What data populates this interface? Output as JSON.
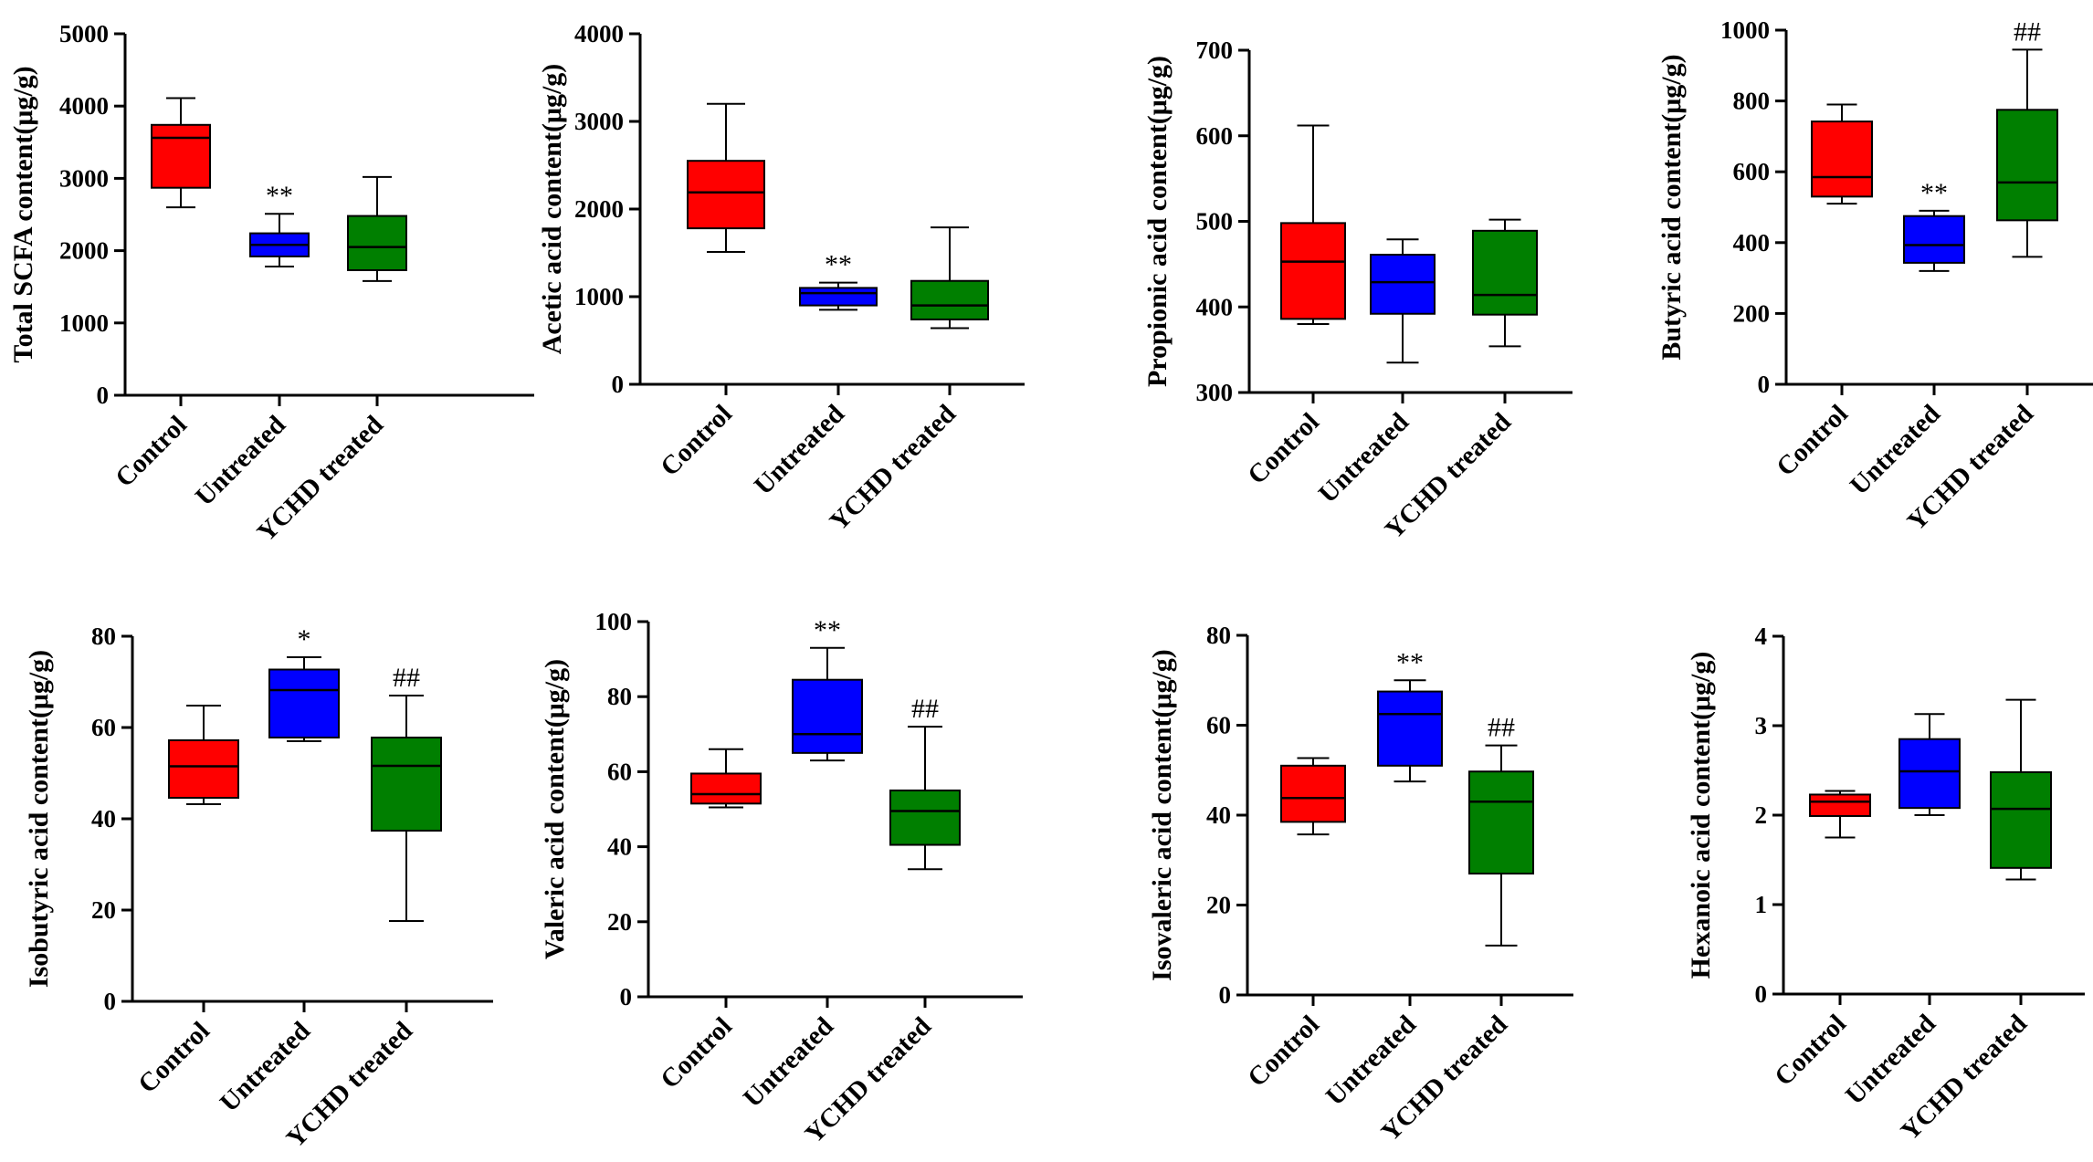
{
  "colors": {
    "Control": "#ff0000",
    "Untreated": "#0000ff",
    "YCHD treated": "#007f00"
  },
  "chart_data": [
    {
      "type": "box",
      "ylabel": "Total SCFA content(μg/g)",
      "ylim": [
        0,
        5000
      ],
      "yticks": [
        0,
        1000,
        2000,
        3000,
        4000,
        5000
      ],
      "categories": [
        "Control",
        "Untreated",
        "YCHD treated"
      ],
      "boxes": [
        {
          "group": "Control",
          "min": 2600,
          "q1": 2870,
          "median": 3560,
          "q3": 3740,
          "max": 4110,
          "sig": ""
        },
        {
          "group": "Untreated",
          "min": 1780,
          "q1": 1920,
          "median": 2080,
          "q3": 2240,
          "max": 2510,
          "sig": "**"
        },
        {
          "group": "YCHD treated",
          "min": 1580,
          "q1": 1730,
          "median": 2050,
          "q3": 2480,
          "max": 3020,
          "sig": ""
        }
      ]
    },
    {
      "type": "box",
      "ylabel": "Acetic acid content(μg/g)",
      "ylim": [
        0,
        4000
      ],
      "yticks": [
        0,
        1000,
        2000,
        3000,
        4000
      ],
      "categories": [
        "Control",
        "Untreated",
        "YCHD treated"
      ],
      "boxes": [
        {
          "group": "Control",
          "min": 1510,
          "q1": 1780,
          "median": 2190,
          "q3": 2550,
          "max": 3200,
          "sig": ""
        },
        {
          "group": "Untreated",
          "min": 850,
          "q1": 900,
          "median": 1040,
          "q3": 1100,
          "max": 1160,
          "sig": "**"
        },
        {
          "group": "YCHD treated",
          "min": 640,
          "q1": 740,
          "median": 900,
          "q3": 1180,
          "max": 1790,
          "sig": ""
        }
      ]
    },
    {
      "type": "box",
      "ylabel": "Propionic acid content(μg/g)",
      "ylim": [
        300,
        700
      ],
      "yticks": [
        300,
        400,
        500,
        600,
        700
      ],
      "categories": [
        "Control",
        "Untreated",
        "YCHD treated"
      ],
      "boxes": [
        {
          "group": "Control",
          "min": 380,
          "q1": 386,
          "median": 453,
          "q3": 498,
          "max": 612,
          "sig": ""
        },
        {
          "group": "Untreated",
          "min": 335,
          "q1": 392,
          "median": 429,
          "q3": 461,
          "max": 479,
          "sig": ""
        },
        {
          "group": "YCHD treated",
          "min": 354,
          "q1": 391,
          "median": 414,
          "q3": 489,
          "max": 502,
          "sig": ""
        }
      ]
    },
    {
      "type": "box",
      "ylabel": "Butyric acid content(μg/g)",
      "ylim": [
        0,
        1000
      ],
      "yticks": [
        0,
        200,
        400,
        600,
        800,
        1000
      ],
      "categories": [
        "Control",
        "Untreated",
        "YCHD treated"
      ],
      "boxes": [
        {
          "group": "Control",
          "min": 510,
          "q1": 530,
          "median": 585,
          "q3": 742,
          "max": 790,
          "sig": ""
        },
        {
          "group": "Untreated",
          "min": 320,
          "q1": 343,
          "median": 393,
          "q3": 475,
          "max": 490,
          "sig": "**"
        },
        {
          "group": "YCHD treated",
          "min": 360,
          "q1": 463,
          "median": 570,
          "q3": 775,
          "max": 945,
          "sig": "##"
        }
      ]
    },
    {
      "type": "box",
      "ylabel": "Isobutyric acid content(μg/g)",
      "ylim": [
        0,
        80
      ],
      "yticks": [
        0,
        20,
        40,
        60,
        80
      ],
      "categories": [
        "Control",
        "Untreated",
        "YCHD treated"
      ],
      "boxes": [
        {
          "group": "Control",
          "min": 43.2,
          "q1": 44.6,
          "median": 51.5,
          "q3": 57.2,
          "max": 64.8,
          "sig": ""
        },
        {
          "group": "Untreated",
          "min": 57.0,
          "q1": 57.8,
          "median": 68.2,
          "q3": 72.7,
          "max": 75.4,
          "sig": "*"
        },
        {
          "group": "YCHD treated",
          "min": 17.6,
          "q1": 37.4,
          "median": 51.6,
          "q3": 57.8,
          "max": 67.0,
          "sig": "##"
        }
      ]
    },
    {
      "type": "box",
      "ylabel": "Valeric acid content(μg/g)",
      "ylim": [
        0,
        100
      ],
      "yticks": [
        0,
        20,
        40,
        60,
        80,
        100
      ],
      "categories": [
        "Control",
        "Untreated",
        "YCHD treated"
      ],
      "boxes": [
        {
          "group": "Control",
          "min": 50.5,
          "q1": 51.5,
          "median": 54.0,
          "q3": 59.5,
          "max": 66.0,
          "sig": ""
        },
        {
          "group": "Untreated",
          "min": 63.0,
          "q1": 65.0,
          "median": 70.0,
          "q3": 84.5,
          "max": 93.0,
          "sig": "**"
        },
        {
          "group": "YCHD treated",
          "min": 34.0,
          "q1": 40.5,
          "median": 49.5,
          "q3": 55.0,
          "max": 72.0,
          "sig": "##"
        }
      ]
    },
    {
      "type": "box",
      "ylabel": "Isovaleric acid content(μg/g)",
      "ylim": [
        0,
        80
      ],
      "yticks": [
        0,
        20,
        40,
        60,
        80
      ],
      "categories": [
        "Control",
        "Untreated",
        "YCHD treated"
      ],
      "boxes": [
        {
          "group": "Control",
          "min": 35.7,
          "q1": 38.5,
          "median": 43.8,
          "q3": 51.0,
          "max": 52.7,
          "sig": ""
        },
        {
          "group": "Untreated",
          "min": 47.5,
          "q1": 51.0,
          "median": 62.5,
          "q3": 67.5,
          "max": 70.0,
          "sig": "**"
        },
        {
          "group": "YCHD treated",
          "min": 11.0,
          "q1": 27.0,
          "median": 43.0,
          "q3": 49.7,
          "max": 55.5,
          "sig": "##"
        }
      ]
    },
    {
      "type": "box",
      "ylabel": "Hexanoic acid content(μg/g)",
      "ylim": [
        0,
        4
      ],
      "yticks": [
        0,
        1,
        2,
        3,
        4
      ],
      "categories": [
        "Control",
        "Untreated",
        "YCHD treated"
      ],
      "boxes": [
        {
          "group": "Control",
          "min": 1.75,
          "q1": 1.99,
          "median": 2.15,
          "q3": 2.23,
          "max": 2.27,
          "sig": ""
        },
        {
          "group": "Untreated",
          "min": 2.0,
          "q1": 2.08,
          "median": 2.49,
          "q3": 2.85,
          "max": 3.13,
          "sig": ""
        },
        {
          "group": "YCHD treated",
          "min": 1.28,
          "q1": 1.41,
          "median": 2.07,
          "q3": 2.48,
          "max": 3.29,
          "sig": ""
        }
      ]
    }
  ]
}
